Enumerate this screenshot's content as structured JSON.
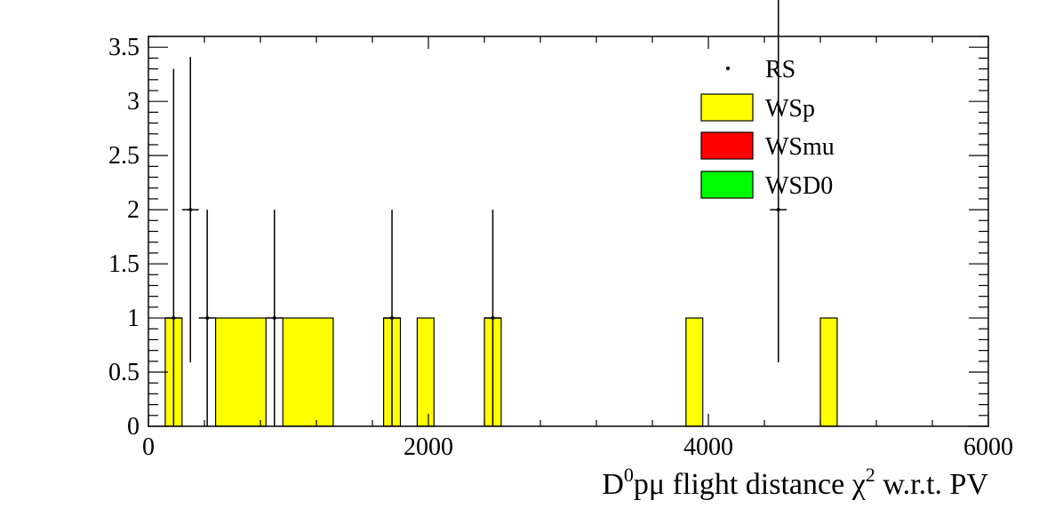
{
  "chart_data": {
    "type": "bar",
    "xlabel": {
      "base": "D",
      "sup1": "0",
      "mid": "pμ flight distance χ",
      "sup2": "2",
      "tail": " w.r.t. PV"
    },
    "xlim": [
      0,
      6000
    ],
    "ylim": [
      0,
      3.6
    ],
    "x_ticks": [
      0,
      2000,
      4000,
      6000
    ],
    "x_tick_labels": [
      "0",
      "2000",
      "4000",
      "6000"
    ],
    "y_ticks": [
      0,
      0.5,
      1,
      1.5,
      2,
      2.5,
      3,
      3.5
    ],
    "y_tick_labels": [
      "0",
      "0.5",
      "1",
      "1.5",
      "2",
      "2.5",
      "3",
      "3.5"
    ],
    "bin_width": 120,
    "grid": false,
    "legend_position": "top-right",
    "series": [
      {
        "name": "RS",
        "style": "points",
        "color": "#000000",
        "x": [
          180,
          300,
          420,
          900,
          1740,
          2460,
          4500
        ],
        "y": [
          1,
          2,
          1,
          1,
          1,
          1,
          2
        ],
        "err_low": [
          1,
          1.41,
          1,
          1,
          1,
          1,
          1.41
        ],
        "err_high": [
          2.3,
          1.41,
          1,
          1,
          1,
          1,
          2.3
        ]
      },
      {
        "name": "WSp",
        "style": "filled",
        "color": "#ffff00",
        "bins": [
          {
            "x0": 120,
            "x1": 240,
            "y": 1
          },
          {
            "x0": 480,
            "x1": 840,
            "y": 1
          },
          {
            "x0": 960,
            "x1": 1320,
            "y": 1
          },
          {
            "x0": 1680,
            "x1": 1800,
            "y": 1
          },
          {
            "x0": 1920,
            "x1": 2040,
            "y": 1
          },
          {
            "x0": 2400,
            "x1": 2520,
            "y": 1
          },
          {
            "x0": 3840,
            "x1": 3960,
            "y": 1
          },
          {
            "x0": 4800,
            "x1": 4920,
            "y": 1
          }
        ]
      },
      {
        "name": "WSmu",
        "style": "filled",
        "color": "#ff0000",
        "bins": []
      },
      {
        "name": "WSD0",
        "style": "filled",
        "color": "#00ff00",
        "bins": []
      }
    ]
  }
}
